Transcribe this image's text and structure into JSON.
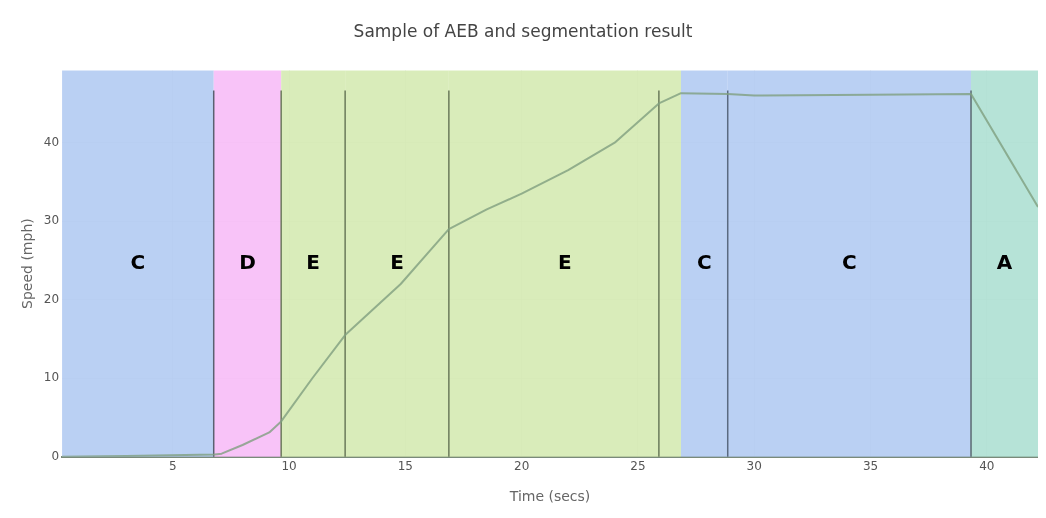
{
  "chart_data": {
    "type": "line",
    "title": "Sample of AEB and segmentation result",
    "xlabel": "Time (secs)",
    "ylabel": "Speed (mph)",
    "xlim": [
      0.24,
      42.2
    ],
    "ylim": [
      0,
      49.2
    ],
    "xticks": [
      5,
      10,
      15,
      20,
      25,
      30,
      35,
      40
    ],
    "yticks": [
      0,
      10,
      20,
      30,
      40
    ],
    "grid": true,
    "legend": false,
    "marker": "none",
    "series": [
      {
        "color": "#7f9f7f",
        "x": [
          0.24,
          3,
          6.8,
          7.1,
          8.0,
          9.15,
          9.66,
          11.0,
          12.41,
          14.8,
          16.87,
          18.5,
          20,
          22,
          24,
          25.9,
          26.85,
          28.86,
          30,
          35,
          39.32,
          42.2
        ],
        "values": [
          0,
          0.1,
          0.3,
          0.4,
          1.5,
          3.1,
          4.5,
          10,
          15.5,
          22,
          29,
          31.5,
          33.5,
          36.5,
          40,
          45,
          46.3,
          46.2,
          46,
          46.1,
          46.2,
          31.8
        ]
      }
    ],
    "bands": [
      {
        "axis": "x",
        "from": 0.24,
        "to": 6.76,
        "label": "C",
        "color": "#b3cbf2"
      },
      {
        "axis": "x",
        "from": 6.76,
        "to": 9.66,
        "label": "D",
        "color": "#f7bdf7"
      },
      {
        "axis": "x",
        "from": 9.66,
        "to": 12.41,
        "label": "E",
        "color": "#d5eab3"
      },
      {
        "axis": "x",
        "from": 12.41,
        "to": 16.87,
        "label": "E",
        "color": "#d5eab3"
      },
      {
        "axis": "x",
        "from": 16.87,
        "to": 26.85,
        "label": "E",
        "color": "#d5eab3"
      },
      {
        "axis": "x",
        "from": 26.85,
        "to": 28.86,
        "label": "C",
        "color": "#b3cbf2"
      },
      {
        "axis": "x",
        "from": 28.86,
        "to": 39.32,
        "label": "C",
        "color": "#b3cbf2"
      },
      {
        "axis": "x",
        "from": 39.32,
        "to": 42.2,
        "label": "A",
        "color": "#aee0d3"
      }
    ],
    "ref_lines": [
      {
        "axis": "x",
        "value": 6.76,
        "color": "#5a6070"
      },
      {
        "axis": "x",
        "value": 9.66,
        "color": "#6a7a5a"
      },
      {
        "axis": "x",
        "value": 12.41,
        "color": "#6a7a5a"
      },
      {
        "axis": "x",
        "value": 16.87,
        "color": "#6a7a5a"
      },
      {
        "axis": "x",
        "value": 25.9,
        "color": "#6a7a5a"
      },
      {
        "axis": "x",
        "value": 28.86,
        "color": "#5a6a80"
      },
      {
        "axis": "x",
        "value": 39.32,
        "color": "#5a6a70"
      }
    ]
  }
}
